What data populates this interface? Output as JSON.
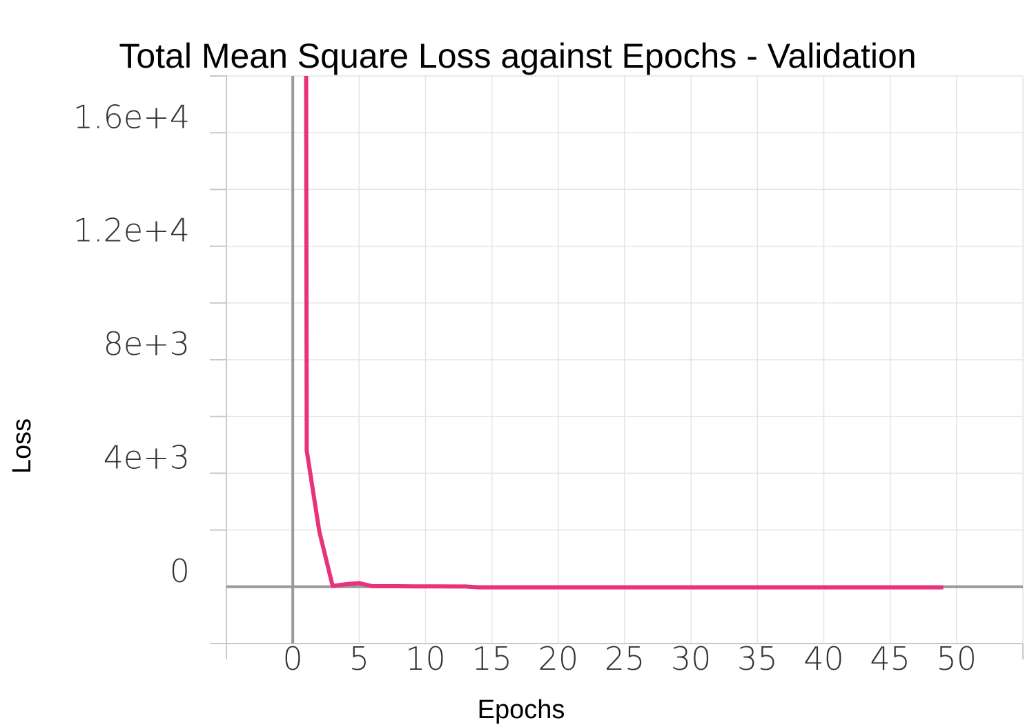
{
  "chart_data": {
    "type": "line",
    "title": "Total Mean Square Loss against Epochs - Validation",
    "xlabel": "Epochs",
    "ylabel": "Loss",
    "xlim": [
      -5,
      55
    ],
    "ylim": [
      -2000,
      18000
    ],
    "x_ticks": [
      0,
      5,
      10,
      15,
      20,
      25,
      30,
      35,
      40,
      45,
      50
    ],
    "x_tick_labels": [
      "0",
      "5",
      "10",
      "15",
      "20",
      "25",
      "30",
      "35",
      "40",
      "45",
      "50"
    ],
    "y_ticks": [
      0,
      4000,
      8000,
      12000,
      16000
    ],
    "y_tick_labels": [
      "0",
      "4e+3",
      "8e+3",
      "1.2e+4",
      "1.6e+4"
    ],
    "grid": true,
    "series": [
      {
        "color": "#e8327a",
        "x": [
          1,
          1.05,
          2,
          3,
          4,
          5,
          6,
          7,
          8,
          9,
          10,
          11,
          12,
          13,
          14,
          15,
          16,
          17,
          18,
          19,
          20,
          21,
          22,
          23,
          24,
          25,
          26,
          27,
          28,
          29,
          30,
          31,
          32,
          33,
          34,
          35,
          36,
          37,
          38,
          39,
          40,
          41,
          42,
          43,
          44,
          45,
          46,
          47,
          48,
          49
        ],
        "values": [
          20000,
          4800,
          1950,
          30,
          90,
          130,
          20,
          20,
          20,
          15,
          15,
          15,
          10,
          10,
          -20,
          -20,
          -20,
          -20,
          -20,
          -20,
          -20,
          -20,
          -20,
          -20,
          -20,
          -20,
          -20,
          -20,
          -20,
          -20,
          -20,
          -20,
          -20,
          -20,
          -20,
          -20,
          -20,
          -20,
          -20,
          -20,
          -20,
          -20,
          -20,
          -20,
          -20,
          -20,
          -20,
          -20,
          -20,
          -20
        ]
      }
    ]
  }
}
